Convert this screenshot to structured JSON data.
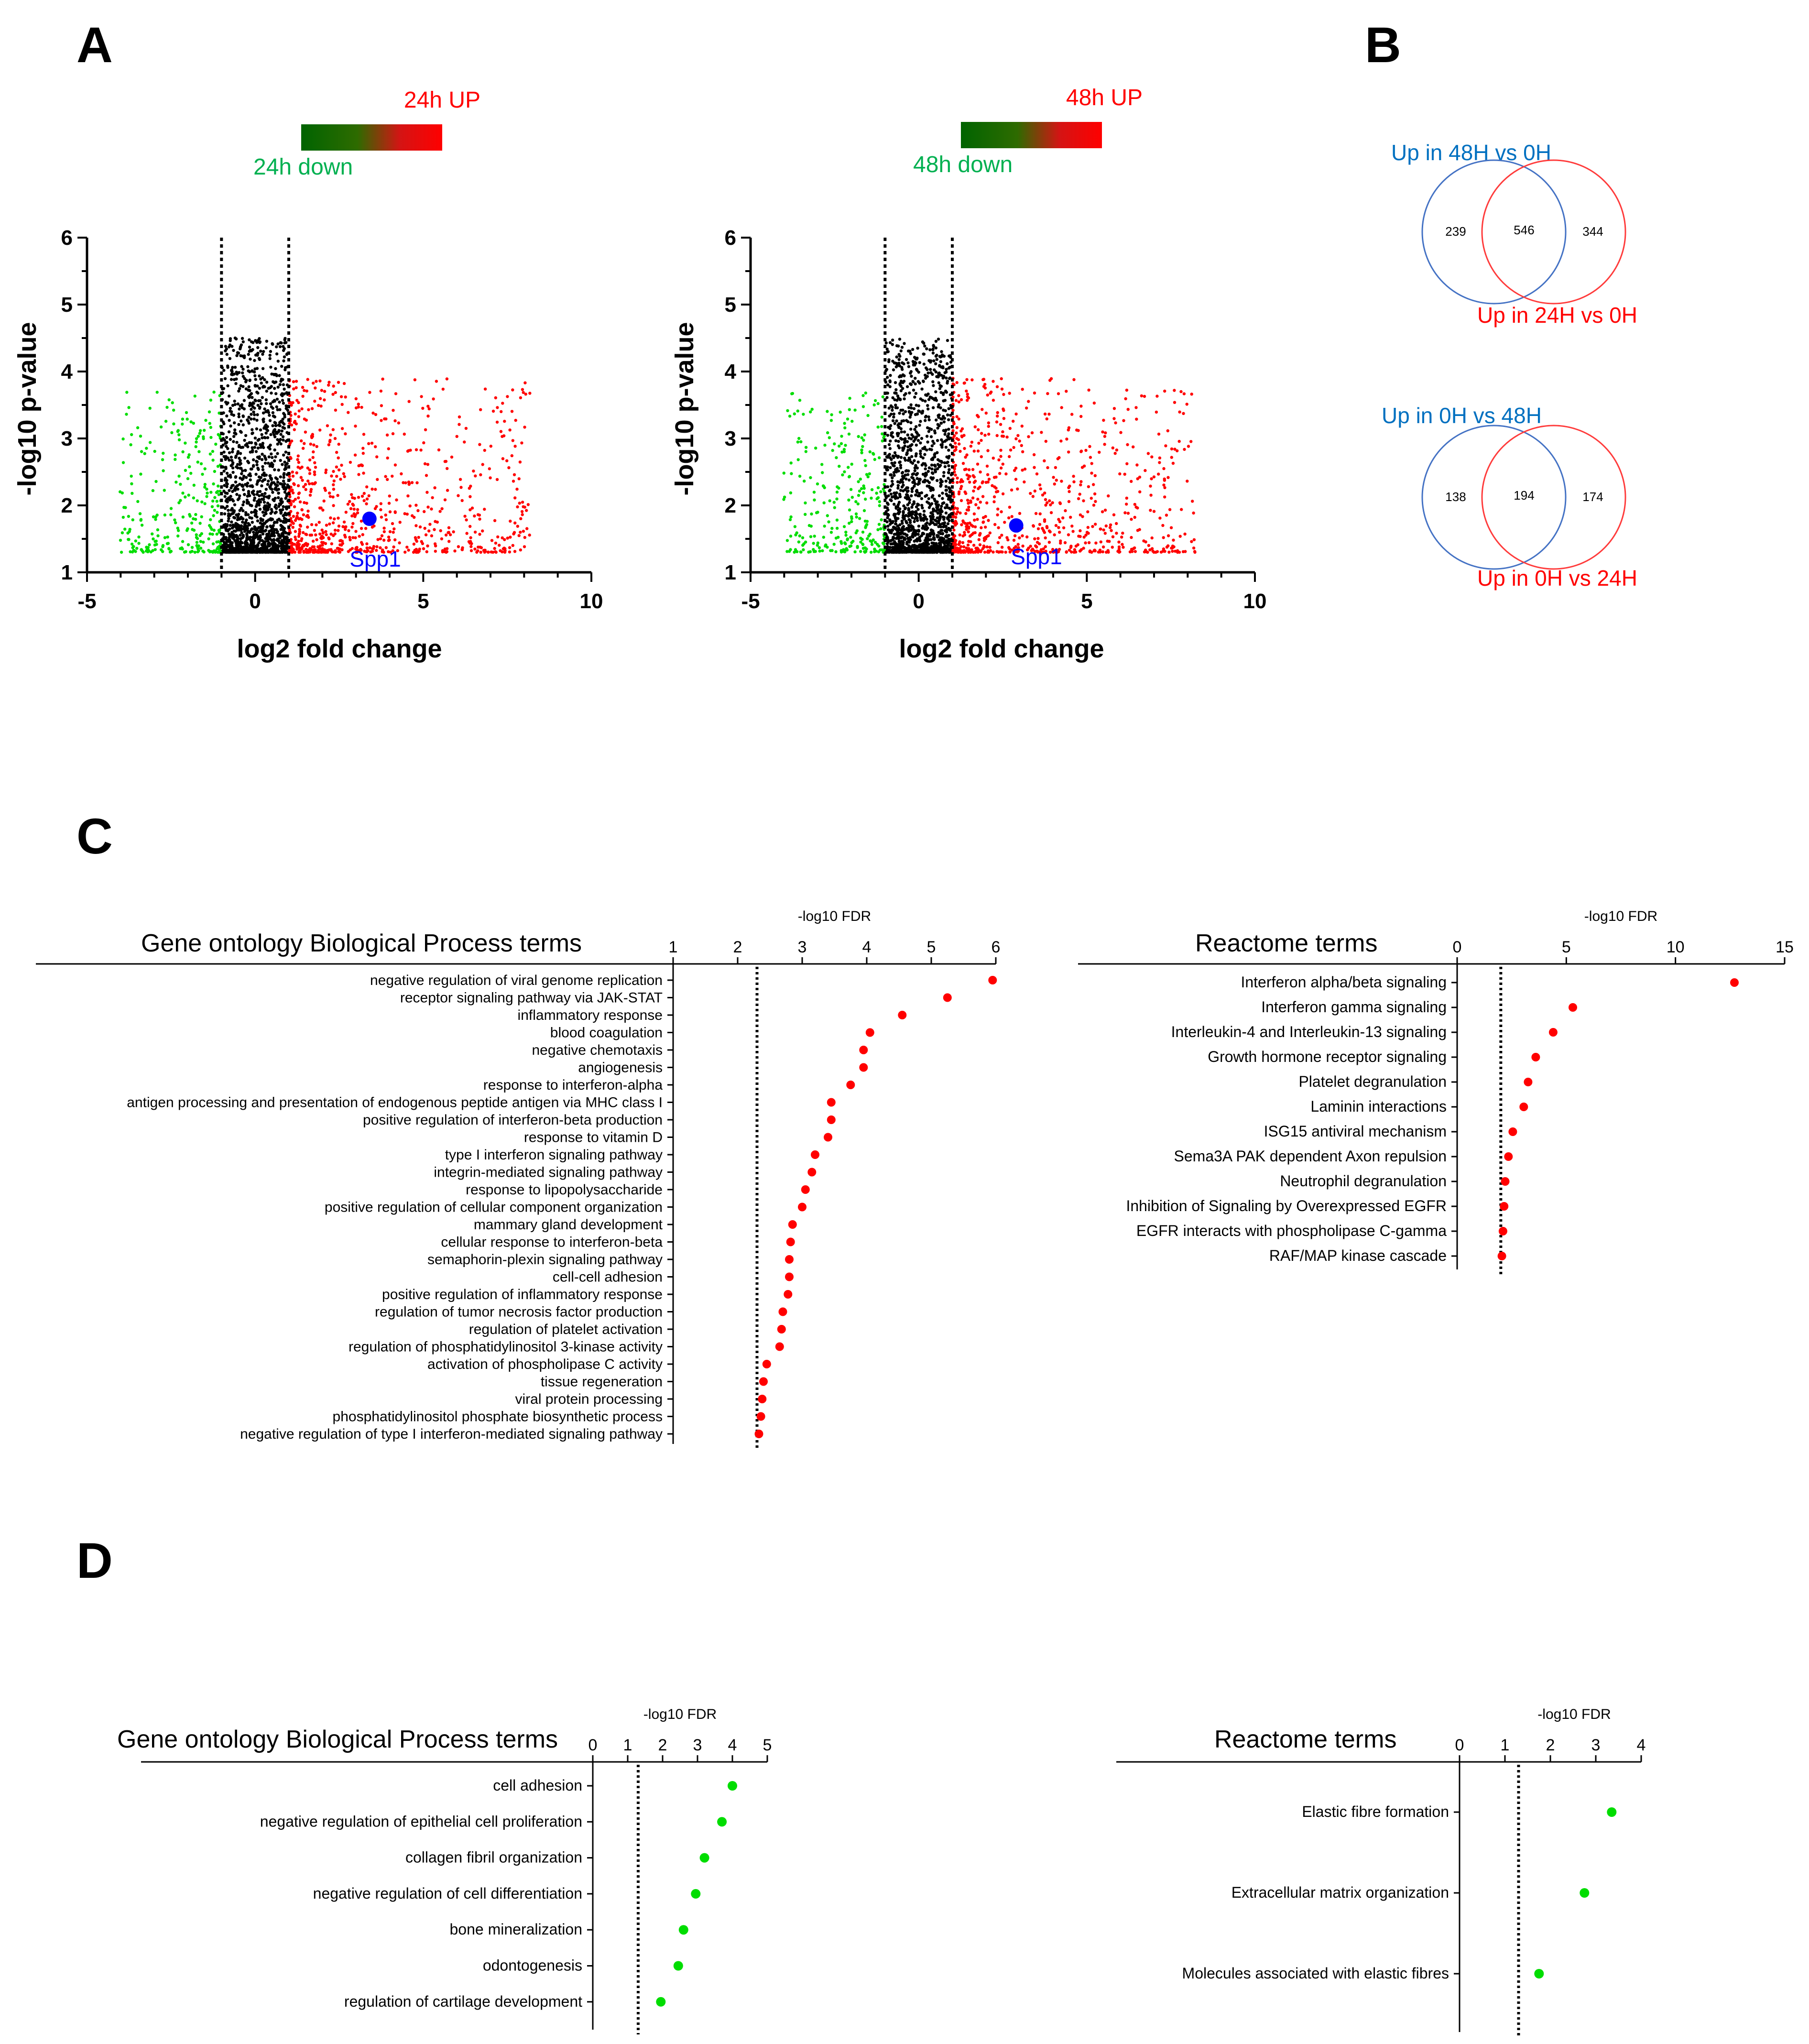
{
  "panel_letters": [
    "A",
    "B",
    "C",
    "D"
  ],
  "colors": {
    "up": "#ff0000",
    "down": "#00dd00",
    "dark_green": "#006400",
    "ns": "#000000",
    "highlight": "#0000ff",
    "venn_blue": "#4472c4",
    "venn_red": "#ff0000",
    "label_blue": "#0070c0"
  },
  "volcano_left": {
    "legend_up": "24h UP",
    "legend_down": "24h down",
    "xlabel": "log2 fold change",
    "ylabel": "-log10 p-value",
    "xlim": [
      -5,
      10
    ],
    "ylim": [
      1,
      6
    ],
    "xticks": [
      "-5",
      "0",
      "5",
      "10"
    ],
    "yticks": [
      "1",
      "2",
      "3",
      "4",
      "5",
      "6"
    ],
    "cutoffs": [
      -1,
      1
    ],
    "highlight_label": "Spp1",
    "highlight_point": [
      3.4,
      1.8
    ]
  },
  "volcano_right": {
    "legend_up": "48h UP",
    "legend_down": "48h down",
    "xlabel": "log2 fold change",
    "ylabel": "-log10 p-value",
    "xlim": [
      -5,
      10
    ],
    "ylim": [
      1,
      6
    ],
    "xticks": [
      "-5",
      "0",
      "5",
      "10"
    ],
    "yticks": [
      "1",
      "2",
      "3",
      "4",
      "5",
      "6"
    ],
    "cutoffs": [
      -1,
      1
    ],
    "highlight_label": "Spp1",
    "highlight_point": [
      2.9,
      1.7
    ]
  },
  "venn": [
    {
      "label_blue": "Up in 48H vs 0H",
      "label_red": "Up in 24H vs 0H",
      "left_only": "239",
      "overlap": "546",
      "right_only": "344"
    },
    {
      "label_blue": "Up in 0H vs 48H",
      "label_red": "Up in 0H vs 24H",
      "left_only": "138",
      "overlap": "194",
      "right_only": "174"
    }
  ],
  "chart_data": [
    {
      "type": "scatter",
      "panel": "A-left",
      "xlabel": "log2 fold change",
      "ylabel": "-log10 p-value",
      "xlim": [
        -5,
        10
      ],
      "ylim": [
        1,
        6
      ],
      "series": [
        {
          "name": "24h down",
          "color": "#00dd00",
          "summary": "log2 fold change < -1"
        },
        {
          "name": "24h UP",
          "color": "#ff0000",
          "summary": "log2 fold change > 1"
        }
      ],
      "highlight": {
        "label": "Spp1",
        "x": 3.4,
        "y": 1.8
      }
    },
    {
      "type": "scatter",
      "panel": "A-right",
      "xlabel": "log2 fold change",
      "ylabel": "-log10 p-value",
      "xlim": [
        -5,
        10
      ],
      "ylim": [
        1,
        6
      ],
      "series": [
        {
          "name": "48h down",
          "color": "#00dd00",
          "summary": "log2 fold change < -1"
        },
        {
          "name": "48h UP",
          "color": "#ff0000",
          "summary": "log2 fold change > 1"
        }
      ],
      "highlight": {
        "label": "Spp1",
        "x": 2.9,
        "y": 1.7
      }
    },
    {
      "type": "scatter",
      "panel": "C-left",
      "title": "Gene ontology Biological Process terms",
      "xlabel": "-log10 FDR",
      "xlim": [
        1,
        6
      ],
      "xticks": [
        1,
        2,
        3,
        4,
        5,
        6
      ],
      "threshold": 2.3,
      "color": "#ff0000",
      "categories": [
        "negative regulation of viral genome replication",
        "receptor signaling pathway via JAK-STAT",
        "inflammatory response",
        "blood coagulation",
        "negative chemotaxis",
        "angiogenesis",
        "response to interferon-alpha",
        "antigen processing and presentation of endogenous peptide antigen via MHC class I",
        "positive regulation of interferon-beta production",
        "response to vitamin D",
        "type I interferon signaling pathway",
        "integrin-mediated signaling pathway",
        "response to lipopolysaccharide",
        "positive regulation of cellular component organization",
        "mammary gland development",
        "cellular response to interferon-beta",
        "semaphorin-plexin signaling pathway",
        "cell-cell adhesion",
        "positive regulation of inflammatory response",
        "regulation of tumor necrosis factor production",
        "regulation of platelet activation",
        "regulation of phosphatidylinositol 3-kinase activity",
        "activation of phospholipase C activity",
        "tissue regeneration",
        "viral protein processing",
        "phosphatidylinositol phosphate biosynthetic process",
        "negative regulation of type I interferon-mediated signaling pathway"
      ],
      "values": [
        5.95,
        5.25,
        4.55,
        4.05,
        3.95,
        3.95,
        3.75,
        3.45,
        3.45,
        3.4,
        3.2,
        3.15,
        3.05,
        3.0,
        2.85,
        2.82,
        2.8,
        2.8,
        2.78,
        2.7,
        2.68,
        2.65,
        2.45,
        2.4,
        2.38,
        2.36,
        2.33
      ]
    },
    {
      "type": "scatter",
      "panel": "C-right",
      "title": "Reactome terms",
      "xlabel": "-log10 FDR",
      "xlim": [
        0,
        15
      ],
      "xticks": [
        0,
        5,
        10,
        15
      ],
      "threshold": 2.0,
      "color": "#ff0000",
      "categories": [
        "Interferon alpha/beta signaling",
        "Interferon gamma signaling",
        "Interleukin-4 and Interleukin-13 signaling",
        "Growth hormone receptor signaling",
        "Platelet degranulation",
        "Laminin interactions",
        "ISG15 antiviral mechanism",
        "Sema3A PAK dependent Axon repulsion",
        "Neutrophil degranulation",
        "Inhibition of Signaling by Overexpressed EGFR",
        "EGFR interacts with phospholipase C-gamma",
        "RAF/MAP kinase cascade"
      ],
      "values": [
        12.7,
        5.3,
        4.4,
        3.6,
        3.25,
        3.05,
        2.55,
        2.35,
        2.2,
        2.15,
        2.1,
        2.05
      ]
    },
    {
      "type": "scatter",
      "panel": "D-left",
      "title": "Gene ontology Biological Process terms",
      "xlabel": "-log10 FDR",
      "xlim": [
        0,
        5
      ],
      "xticks": [
        0,
        1,
        2,
        3,
        4,
        5
      ],
      "threshold": 1.3,
      "color": "#00dd00",
      "categories": [
        "cell adhesion",
        "negative regulation of epithelial cell proliferation",
        "collagen fibril organization",
        "negative regulation of cell differentiation",
        "bone mineralization",
        "odontogenesis",
        "regulation of cartilage development"
      ],
      "values": [
        4.0,
        3.7,
        3.2,
        2.95,
        2.6,
        2.45,
        1.95
      ]
    },
    {
      "type": "scatter",
      "panel": "D-right",
      "title": "Reactome terms",
      "xlabel": "-log10 FDR",
      "xlim": [
        0,
        4
      ],
      "xticks": [
        0,
        1,
        2,
        3,
        4
      ],
      "threshold": 1.3,
      "color": "#00dd00",
      "categories": [
        "Elastic fibre formation",
        "Extracellular matrix organization",
        "Molecules associated with elastic fibres"
      ],
      "values": [
        3.35,
        2.75,
        1.75
      ]
    }
  ]
}
